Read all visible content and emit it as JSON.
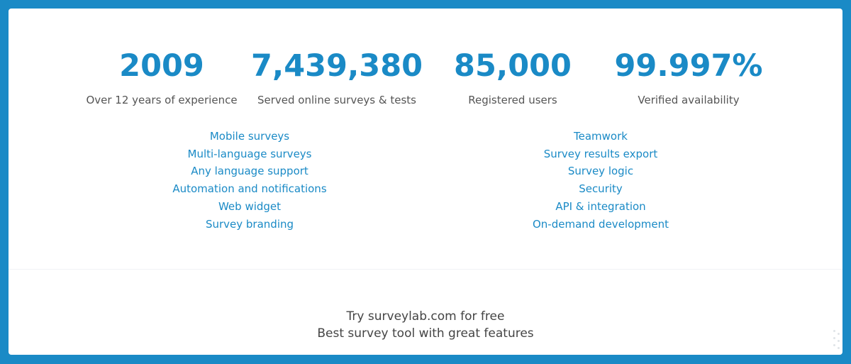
{
  "stats": [
    {
      "value": "2009",
      "label": "Over 12 years of experience"
    },
    {
      "value": "7,439,380",
      "label": "Served online surveys & tests"
    },
    {
      "value": "85,000",
      "label": "Registered users"
    },
    {
      "value": "99.997%",
      "label": "Verified availability"
    }
  ],
  "features_left": [
    "Mobile surveys",
    "Multi-language surveys",
    "Any language support",
    "Automation and notifications",
    "Web widget",
    "Survey branding"
  ],
  "features_right": [
    "Teamwork",
    "Survey results export",
    "Survey logic",
    "Security",
    "API & integration",
    "On-demand development"
  ],
  "cta": {
    "line1": "Try surveylab.com for free",
    "line2": "Best survey tool with great features"
  },
  "colors": {
    "accent": "#1a8ac6",
    "background": "#1a8ac6",
    "card": "#ffffff",
    "label_text": "#555555"
  }
}
